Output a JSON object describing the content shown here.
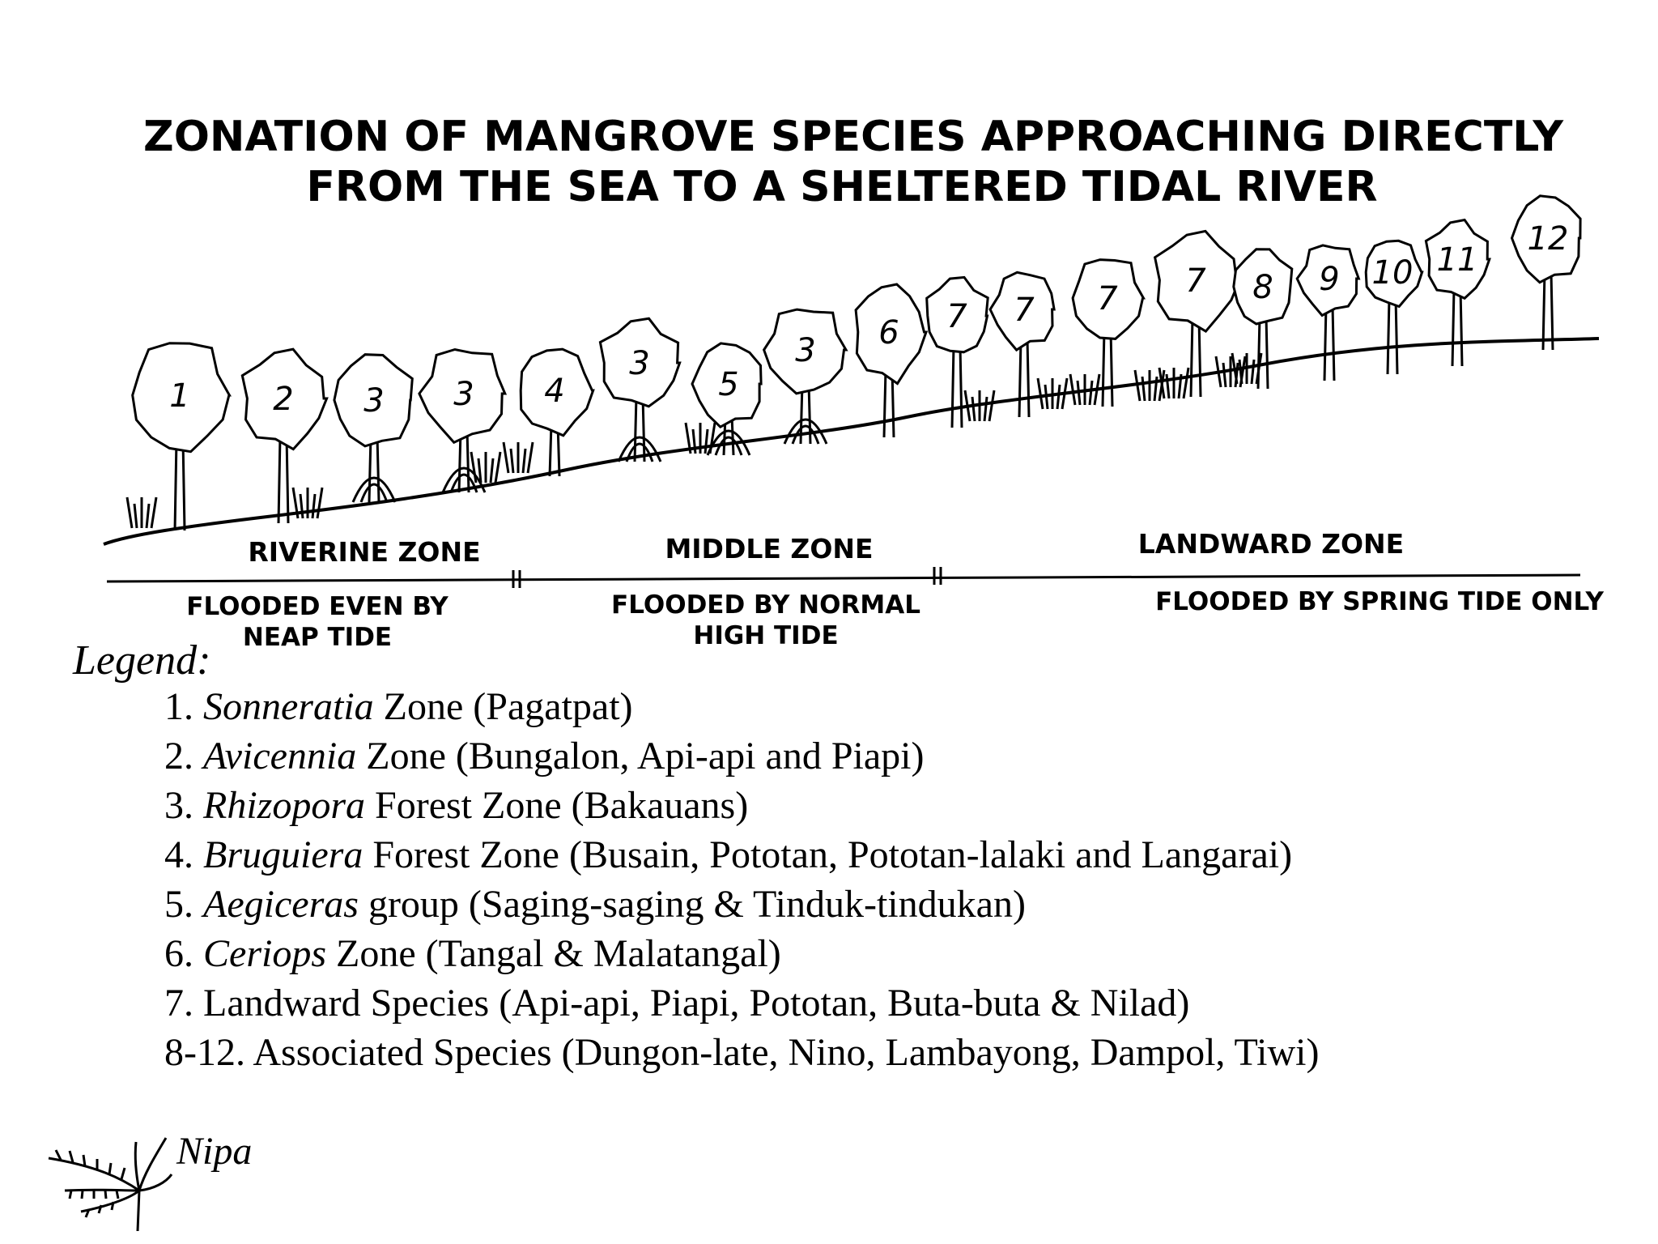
{
  "title": {
    "line1": "ZONATION OF MANGROVE SPECIES APPROACHING DIRECTLY",
    "line2": "FROM THE SEA TO A SHELTERED TIDAL RIVER"
  },
  "trees": [
    {
      "label": "1"
    },
    {
      "label": "2"
    },
    {
      "label": "3"
    },
    {
      "label": "3"
    },
    {
      "label": "4"
    },
    {
      "label": "3"
    },
    {
      "label": "5"
    },
    {
      "label": "3"
    },
    {
      "label": "6"
    },
    {
      "label": "7"
    },
    {
      "label": "7"
    },
    {
      "label": "7"
    },
    {
      "label": "7"
    },
    {
      "label": "8"
    },
    {
      "label": "9"
    },
    {
      "label": "10"
    },
    {
      "label": "11"
    },
    {
      "label": "12"
    }
  ],
  "zones": [
    {
      "name": "RIVERINE ZONE",
      "flood": [
        "FLOODED EVEN BY",
        "NEAP TIDE"
      ]
    },
    {
      "name": "MIDDLE ZONE",
      "flood": [
        "FLOODED BY NORMAL",
        "HIGH TIDE"
      ]
    },
    {
      "name": "LANDWARD ZONE",
      "flood": [
        "FLOODED BY SPRING TIDE ONLY"
      ]
    }
  ],
  "legend": {
    "title": "Legend:",
    "items": [
      {
        "num": "1.",
        "sci": "Sonneratia",
        "rest": "Zone (Pagatpat)"
      },
      {
        "num": "2.",
        "sci": "Avicennia",
        "rest": "Zone (Bungalon, Api-api and Piapi)"
      },
      {
        "num": "3.",
        "sci": "Rhizopora",
        "rest": "Forest Zone (Bakauans)"
      },
      {
        "num": "4.",
        "sci": "Bruguiera",
        "rest": "Forest Zone (Busain, Pototan, Pototan-lalaki and Langarai)"
      },
      {
        "num": "5.",
        "sci": "Aegiceras",
        "rest": "group (Saging-saging & Tinduk-tindukan)"
      },
      {
        "num": "6.",
        "sci": "Ceriops",
        "rest": "Zone (Tangal & Malatangal)"
      },
      {
        "num": "7.",
        "sci": "",
        "rest": "Landward Species (Api-api, Piapi, Pototan, Buta-buta & Nilad)"
      },
      {
        "num": "8-12.",
        "sci": "",
        "rest": "Associated Species (Dungon-late, Nino, Lambayong, Dampol, Tiwi)"
      }
    ],
    "nipa": "Nipa"
  }
}
